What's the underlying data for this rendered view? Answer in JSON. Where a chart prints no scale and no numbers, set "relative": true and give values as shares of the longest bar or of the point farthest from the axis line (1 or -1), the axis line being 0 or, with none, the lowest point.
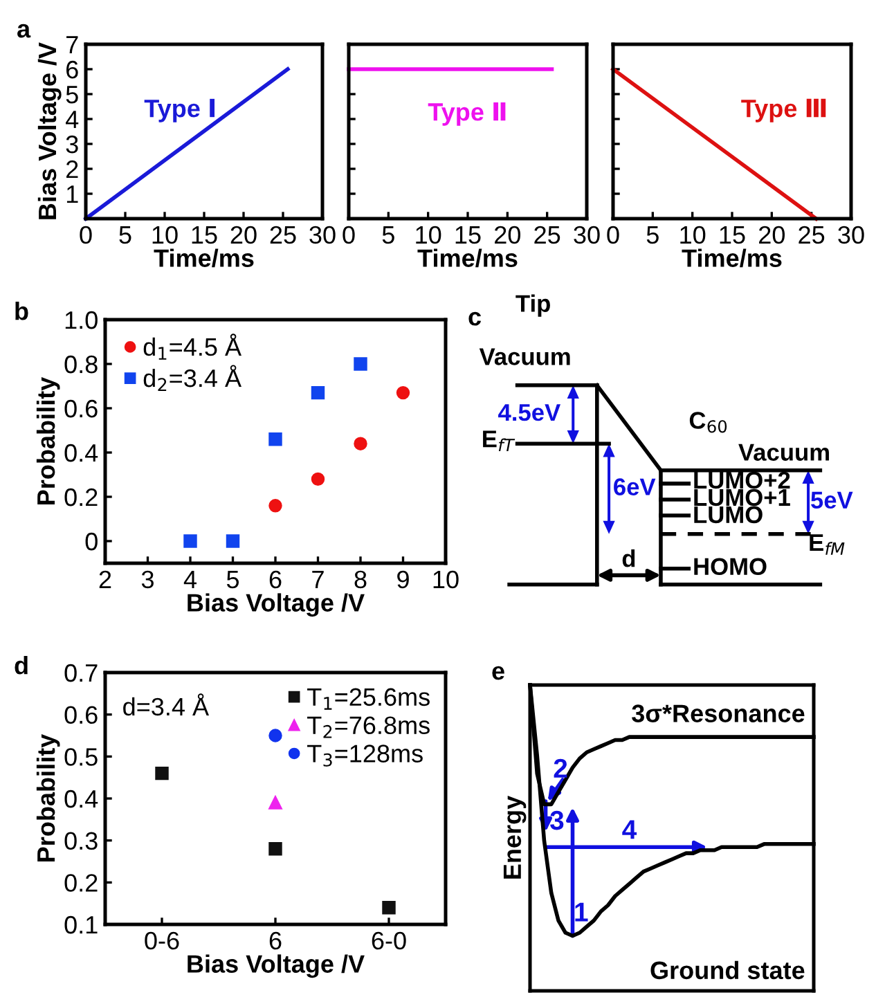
{
  "chart_data": [
    {
      "type": "line",
      "title": "a",
      "ylabel": "Bias Voltage /V",
      "xlabel": "Time/ms",
      "xlim": [
        0,
        30
      ],
      "xticks": [
        0,
        5,
        10,
        15,
        20,
        25,
        30
      ],
      "ylim": [
        0,
        7
      ],
      "yticks": [
        {
          "value": 0,
          "label": null
        },
        1,
        2,
        3,
        4,
        5,
        6,
        7
      ],
      "grid": false,
      "legend": false,
      "series": [
        {
          "name": "Type Ⅰ",
          "color": "#1a1ad8",
          "x": [
            0,
            25.6
          ],
          "values": [
            0,
            6
          ]
        }
      ]
    },
    {
      "type": "line",
      "xlabel": "Time/ms",
      "xlim": [
        0,
        30
      ],
      "xticks": [
        0,
        5,
        10,
        15,
        20,
        25,
        30
      ],
      "ylim": [
        0,
        7
      ],
      "yticks": [
        0,
        1,
        2,
        3,
        4,
        5,
        6,
        7
      ],
      "tick_labels": "x",
      "grid": false,
      "legend": false,
      "series": [
        {
          "name": "Type Ⅱ",
          "color": "#ee11ee",
          "x": [
            0,
            25.6
          ],
          "values": [
            6,
            6
          ]
        }
      ]
    },
    {
      "type": "line",
      "xlabel": "Time/ms",
      "xlim": [
        0,
        30
      ],
      "xticks": [
        0,
        5,
        10,
        15,
        20,
        25,
        30
      ],
      "ylim": [
        0,
        7
      ],
      "yticks": [
        0,
        1,
        2,
        3,
        4,
        5,
        6,
        7
      ],
      "tick_labels": "x",
      "grid": false,
      "legend": false,
      "series": [
        {
          "name": "Type Ⅲ",
          "color": "#dd1111",
          "x": [
            0,
            25.6
          ],
          "values": [
            6,
            0
          ]
        }
      ]
    },
    {
      "type": "scatter",
      "title": "b",
      "xlabel": "Bias Voltage /V",
      "ylabel": "Probability",
      "xlim": [
        2,
        10
      ],
      "xticks": [
        2,
        3,
        4,
        5,
        6,
        7,
        8,
        9,
        10
      ],
      "ylim": [
        -0.1,
        1.0
      ],
      "yticks": [
        0,
        0.2,
        0.4,
        0.6,
        0.8,
        {
          "value": 1.0,
          "label": "1.0"
        }
      ],
      "grid": false,
      "legend": "top left",
      "series": [
        {
          "name": "d$_{1}$=4.5 Å",
          "color": "#ee1111",
          "marker": "circle",
          "x": [
            6,
            7,
            8,
            9
          ],
          "values": [
            0.16,
            0.28,
            0.44,
            0.67
          ]
        },
        {
          "name": "d$_{2}$=3.4 Å",
          "color": "#1144ee",
          "marker": "square",
          "x": [
            4,
            5,
            6,
            7,
            8
          ],
          "values": [
            0,
            0,
            0.46,
            0.67,
            0.8
          ]
        }
      ]
    },
    {
      "type": "other",
      "title": "c",
      "annotations": [
        "Tip",
        "Vacuum",
        "E$_{fT}$",
        "4.5eV",
        "6eV",
        "C$_{60}$",
        "Vacuum",
        "LUMO+2",
        "LUMO+1",
        "LUMO",
        "5eV",
        "E$_{fM}$",
        "d",
        "HOMO"
      ]
    },
    {
      "type": "scatter",
      "title": "d",
      "xlabel": "Bias Voltage /V",
      "ylabel": "Probability",
      "categories": [
        "0-6",
        "6",
        "6-0"
      ],
      "ylim": [
        0.1,
        0.7
      ],
      "yticks": [
        0.1,
        0.2,
        0.3,
        0.4,
        0.5,
        0.6,
        0.7
      ],
      "grid": false,
      "legend": "top right",
      "annotations": [
        "d=3.4 Å"
      ],
      "series": [
        {
          "name": "T$_{1}$=25.6ms",
          "color": "#111111",
          "marker": "square",
          "values": [
            0.46,
            0.28,
            0.14
          ]
        },
        {
          "name": "T$_{2}$=76.8ms",
          "color": "#ee22ee",
          "marker": "triangle",
          "values": [
            null,
            0.39,
            null
          ]
        },
        {
          "name": "T$_{3}$=128ms",
          "color": "#1133ee",
          "marker": "circle",
          "values": [
            null,
            0.55,
            null
          ]
        }
      ]
    },
    {
      "type": "line",
      "relative": true,
      "title": "e",
      "ylabel": "Energy",
      "tick_labels": false,
      "legend": false,
      "annotations": [
        "1",
        "2",
        "3",
        "4"
      ],
      "categories": [
        null,
        null,
        null,
        null,
        null,
        null,
        null,
        null,
        null,
        null,
        null,
        null,
        null,
        null,
        null,
        null,
        null,
        null,
        null,
        null,
        null,
        null,
        null,
        null,
        null,
        null,
        null,
        null,
        null,
        null,
        null,
        null,
        null,
        null,
        null,
        null,
        null,
        null,
        null,
        null,
        null
      ],
      "series": [
        {
          "name": "3σ*Resonance",
          "color": "#000000",
          "values": [
            1,
            0.71,
            0.61,
            0.61,
            0.65,
            0.69,
            0.73,
            0.76,
            0.78,
            0.79,
            0.8,
            0.81,
            0.82,
            0.82,
            0.83,
            0.83,
            0.83,
            0.83,
            0.83,
            0.83,
            0.83,
            0.83,
            0.83,
            0.83,
            0.83,
            0.83,
            0.83,
            0.83,
            0.83,
            0.83,
            0.83,
            0.83,
            0.83,
            0.83,
            0.83,
            0.83,
            0.83,
            0.83,
            0.83,
            0.83,
            0.83
          ]
        },
        {
          "name": "Ground state",
          "color": "#000000",
          "values": [
            1,
            0.77,
            0.49,
            0.32,
            0.23,
            0.19,
            0.18,
            0.19,
            0.21,
            0.23,
            0.26,
            0.28,
            0.31,
            0.33,
            0.35,
            0.37,
            0.39,
            0.4,
            0.41,
            0.42,
            0.43,
            0.44,
            0.45,
            0.45,
            0.46,
            0.46,
            0.46,
            0.47,
            0.47,
            0.47,
            0.47,
            0.47,
            0.47,
            0.48,
            0.48,
            0.48,
            0.48,
            0.48,
            0.48,
            0.48,
            0.48
          ]
        }
      ]
    }
  ]
}
